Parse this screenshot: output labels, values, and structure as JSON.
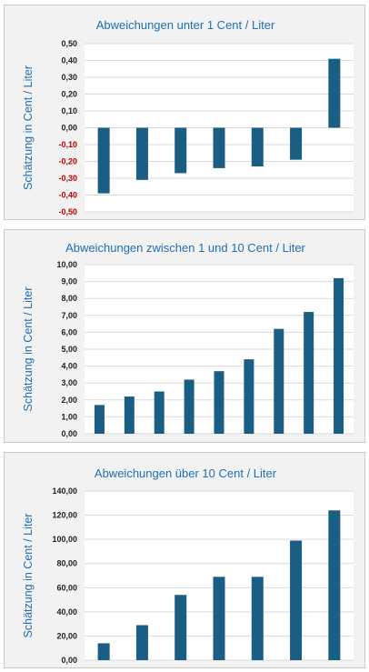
{
  "colors": {
    "bar": "#1b5e83",
    "title": "#1f6fb4",
    "negative_tick": "#c00000",
    "plot_bg": "#ffffff",
    "panel_bg": "#f2f2f2"
  },
  "chart_data": [
    {
      "type": "bar",
      "title": "Abweichungen unter 1 Cent / Liter",
      "ylabel": "Schätzung in Cent / Liter",
      "xlabel": "",
      "ylim": [
        -0.5,
        0.5
      ],
      "yticks": [
        "0,50",
        "0,40",
        "0,30",
        "0,20",
        "0,10",
        "0,00",
        "-0,10",
        "-0,20",
        "-0,30",
        "-0,40",
        "-0,50"
      ],
      "tick_values": [
        0.5,
        0.4,
        0.3,
        0.2,
        0.1,
        0,
        -0.1,
        -0.2,
        -0.3,
        -0.4,
        -0.5
      ],
      "grid": true,
      "values": [
        -0.39,
        -0.31,
        -0.27,
        -0.24,
        -0.23,
        -0.19,
        0.41
      ]
    },
    {
      "type": "bar",
      "title": "Abweichungen zwischen 1 und 10 Cent / Liter",
      "ylabel": "Schätzung in Cent / Liter",
      "xlabel": "",
      "ylim": [
        0,
        10
      ],
      "yticks": [
        "10,00",
        "9,00",
        "8,00",
        "7,00",
        "6,00",
        "5,00",
        "4,00",
        "3,00",
        "2,00",
        "1,00",
        "0,00"
      ],
      "tick_values": [
        10,
        9,
        8,
        7,
        6,
        5,
        4,
        3,
        2,
        1,
        0
      ],
      "grid": true,
      "values": [
        1.7,
        2.2,
        2.5,
        3.2,
        3.7,
        4.4,
        6.2,
        7.2,
        9.2
      ]
    },
    {
      "type": "bar",
      "title": "Abweichungen über 10 Cent / Liter",
      "ylabel": "Schätzung in Cent / Liter",
      "xlabel": "",
      "ylim": [
        0,
        140
      ],
      "yticks": [
        "140,00",
        "120,00",
        "100,00",
        "80,00",
        "60,00",
        "40,00",
        "20,00",
        "0,00"
      ],
      "tick_values": [
        140,
        120,
        100,
        80,
        60,
        40,
        20,
        0
      ],
      "grid": true,
      "values": [
        14,
        29,
        54,
        69,
        69,
        99,
        124
      ]
    }
  ]
}
